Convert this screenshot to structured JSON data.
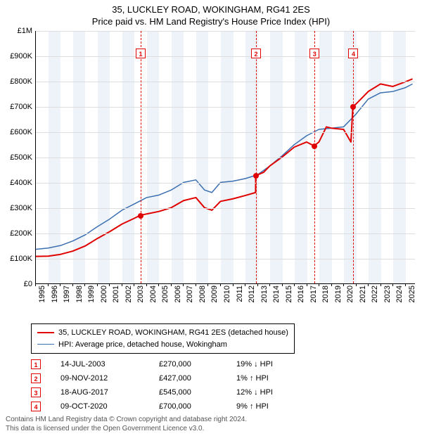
{
  "title": {
    "line1": "35, LUCKLEY ROAD, WOKINGHAM, RG41 2ES",
    "line2": "Price paid vs. HM Land Registry's House Price Index (HPI)",
    "fontsize": 13
  },
  "chart": {
    "type": "line",
    "background_color": "#ffffff",
    "band_color": "#eef3f9",
    "grid_color": "#dddddd",
    "axis_color": "#000000",
    "ylim": [
      0,
      1000000
    ],
    "ytick_step": 100000,
    "yticks": [
      "£0",
      "£100K",
      "£200K",
      "£300K",
      "£400K",
      "£500K",
      "£600K",
      "£700K",
      "£800K",
      "£900K",
      "£1M"
    ],
    "xlim": [
      1995,
      2025.8
    ],
    "xticks": [
      1995,
      1996,
      1997,
      1998,
      1999,
      2000,
      2001,
      2002,
      2003,
      2004,
      2005,
      2006,
      2007,
      2008,
      2009,
      2010,
      2011,
      2012,
      2013,
      2014,
      2015,
      2016,
      2017,
      2018,
      2019,
      2020,
      2021,
      2022,
      2023,
      2024,
      2025
    ],
    "vlines": [
      2003.5,
      2012.85,
      2017.6,
      2020.75
    ],
    "series": {
      "price_paid": {
        "label": "35, LUCKLEY ROAD, WOKINGHAM, RG41 2ES (detached house)",
        "color": "#e00000",
        "line_width": 2,
        "points": [
          [
            1995.0,
            107000
          ],
          [
            1996.0,
            108000
          ],
          [
            1997.0,
            115000
          ],
          [
            1998.0,
            128000
          ],
          [
            1999.0,
            148000
          ],
          [
            2000.0,
            178000
          ],
          [
            2001.0,
            205000
          ],
          [
            2002.0,
            235000
          ],
          [
            2003.0,
            258000
          ],
          [
            2003.5,
            270000
          ],
          [
            2004.0,
            275000
          ],
          [
            2005.0,
            285000
          ],
          [
            2006.0,
            300000
          ],
          [
            2007.0,
            328000
          ],
          [
            2008.0,
            340000
          ],
          [
            2008.7,
            300000
          ],
          [
            2009.3,
            290000
          ],
          [
            2010.0,
            325000
          ],
          [
            2011.0,
            335000
          ],
          [
            2012.0,
            348000
          ],
          [
            2012.85,
            360000
          ],
          [
            2012.86,
            427000
          ],
          [
            2013.5,
            440000
          ],
          [
            2014.0,
            465000
          ],
          [
            2015.0,
            500000
          ],
          [
            2016.0,
            540000
          ],
          [
            2017.0,
            560000
          ],
          [
            2017.6,
            545000
          ],
          [
            2017.61,
            545000
          ],
          [
            2018.0,
            560000
          ],
          [
            2018.6,
            620000
          ],
          [
            2019.0,
            615000
          ],
          [
            2020.0,
            610000
          ],
          [
            2020.6,
            560000
          ],
          [
            2020.75,
            700000
          ],
          [
            2021.0,
            710000
          ],
          [
            2022.0,
            760000
          ],
          [
            2023.0,
            790000
          ],
          [
            2024.0,
            780000
          ],
          [
            2025.0,
            798000
          ],
          [
            2025.6,
            810000
          ]
        ]
      },
      "hpi": {
        "label": "HPI: Average price, detached house, Wokingham",
        "color": "#3a6fb0",
        "line_width": 1.5,
        "points": [
          [
            1995.0,
            135000
          ],
          [
            1996.0,
            140000
          ],
          [
            1997.0,
            150000
          ],
          [
            1998.0,
            168000
          ],
          [
            1999.0,
            192000
          ],
          [
            2000.0,
            225000
          ],
          [
            2001.0,
            255000
          ],
          [
            2002.0,
            290000
          ],
          [
            2003.0,
            315000
          ],
          [
            2004.0,
            340000
          ],
          [
            2005.0,
            350000
          ],
          [
            2006.0,
            370000
          ],
          [
            2007.0,
            400000
          ],
          [
            2008.0,
            410000
          ],
          [
            2008.7,
            370000
          ],
          [
            2009.3,
            360000
          ],
          [
            2010.0,
            400000
          ],
          [
            2011.0,
            405000
          ],
          [
            2012.0,
            415000
          ],
          [
            2013.0,
            430000
          ],
          [
            2014.0,
            465000
          ],
          [
            2015.0,
            505000
          ],
          [
            2016.0,
            550000
          ],
          [
            2017.0,
            585000
          ],
          [
            2018.0,
            610000
          ],
          [
            2019.0,
            615000
          ],
          [
            2020.0,
            620000
          ],
          [
            2021.0,
            670000
          ],
          [
            2022.0,
            730000
          ],
          [
            2023.0,
            755000
          ],
          [
            2024.0,
            760000
          ],
          [
            2025.0,
            775000
          ],
          [
            2025.6,
            790000
          ]
        ]
      }
    },
    "sale_markers": [
      {
        "n": "1",
        "year": 2003.5,
        "price": 270000
      },
      {
        "n": "2",
        "year": 2012.85,
        "price": 427000
      },
      {
        "n": "3",
        "year": 2017.6,
        "price": 545000
      },
      {
        "n": "4",
        "year": 2020.75,
        "price": 700000
      }
    ],
    "marker_box_y_value": 910000
  },
  "legend": {
    "items": [
      {
        "color": "#e00000",
        "width": 2,
        "label_key": "chart.series.price_paid.label"
      },
      {
        "color": "#3a6fb0",
        "width": 1.5,
        "label_key": "chart.series.hpi.label"
      }
    ]
  },
  "sales_table": {
    "rows": [
      {
        "n": "1",
        "date": "14-JUL-2003",
        "price": "£270,000",
        "diff": "19% ↓ HPI"
      },
      {
        "n": "2",
        "date": "09-NOV-2012",
        "price": "£427,000",
        "diff": "1% ↑ HPI"
      },
      {
        "n": "3",
        "date": "18-AUG-2017",
        "price": "£545,000",
        "diff": "12% ↓ HPI"
      },
      {
        "n": "4",
        "date": "09-OCT-2020",
        "price": "£700,000",
        "diff": "9% ↑ HPI"
      }
    ]
  },
  "footer": {
    "line1": "Contains HM Land Registry data © Crown copyright and database right 2024.",
    "line2": "This data is licensed under the Open Government Licence v3.0."
  }
}
